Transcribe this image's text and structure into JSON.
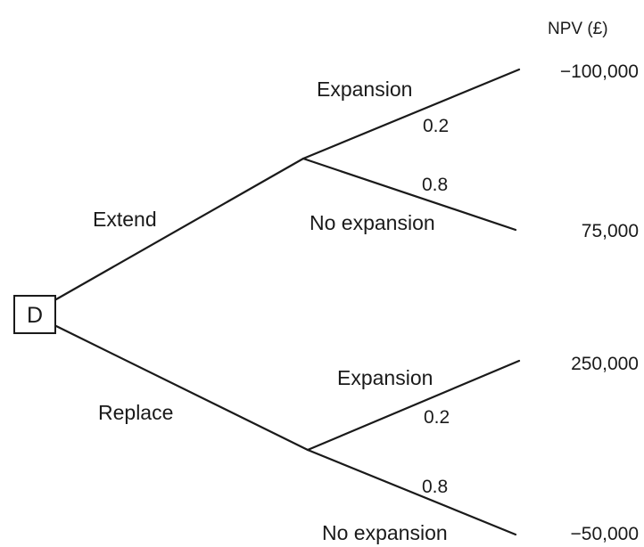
{
  "header": {
    "npv_title": "NPV (£)"
  },
  "decision_node": {
    "label": "D"
  },
  "branches": {
    "extend": {
      "label": "Extend",
      "outcomes": {
        "expansion": {
          "label": "Expansion",
          "probability": "0.2",
          "npv": "−100,000"
        },
        "no_expansion": {
          "label": "No expansion",
          "probability": "0.8",
          "npv": "75,000"
        }
      }
    },
    "replace": {
      "label": "Replace",
      "outcomes": {
        "expansion": {
          "label": "Expansion",
          "probability": "0.2",
          "npv": "250,000"
        },
        "no_expansion": {
          "label": "No expansion",
          "probability": "0.8",
          "npv": "−50,000"
        }
      }
    }
  }
}
